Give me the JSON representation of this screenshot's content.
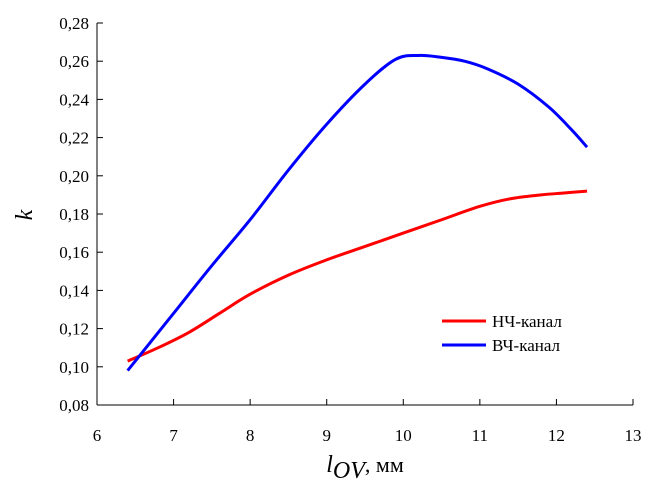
{
  "chart_data": {
    "type": "line",
    "title": "",
    "xlabel": "l_ov, мм",
    "xlabel_var": "l",
    "xlabel_sub": "OV",
    "xlabel_unit": ", мм",
    "ylabel": "k",
    "xlim": [
      6,
      13
    ],
    "ylim": [
      0.08,
      0.28
    ],
    "x_ticks": [
      6,
      7,
      8,
      9,
      10,
      11,
      12,
      13
    ],
    "x_tick_labels": [
      "6",
      "7",
      "8",
      "9",
      "10",
      "11",
      "12",
      "13"
    ],
    "y_ticks": [
      0.08,
      0.1,
      0.12,
      0.14,
      0.16,
      0.18,
      0.2,
      0.22,
      0.24,
      0.26,
      0.28
    ],
    "y_tick_labels": [
      "0,08",
      "0,10",
      "0,12",
      "0,14",
      "0,16",
      "0,18",
      "0,20",
      "0,22",
      "0,24",
      "0,26",
      "0,28"
    ],
    "grid": false,
    "legend_position": "bottom-right",
    "series": [
      {
        "name": "НЧ-канал",
        "color": "#ff0000",
        "x": [
          6.4,
          6.8,
          7.2,
          7.6,
          8.0,
          8.5,
          9.0,
          9.5,
          10.0,
          10.5,
          11.0,
          11.4,
          11.8,
          12.1,
          12.4
        ],
        "y": [
          0.103,
          0.11,
          0.118,
          0.128,
          0.138,
          0.148,
          0.156,
          0.163,
          0.17,
          0.177,
          0.184,
          0.188,
          0.19,
          0.191,
          0.192
        ]
      },
      {
        "name": "ВЧ-канал",
        "color": "#0000ff",
        "x": [
          6.4,
          6.6,
          7.0,
          7.5,
          8.0,
          8.5,
          9.0,
          9.5,
          9.9,
          10.2,
          10.5,
          10.8,
          11.1,
          11.5,
          11.9,
          12.2,
          12.4
        ],
        "y": [
          0.098,
          0.108,
          0.128,
          0.153,
          0.177,
          0.203,
          0.227,
          0.248,
          0.261,
          0.263,
          0.262,
          0.26,
          0.256,
          0.248,
          0.236,
          0.224,
          0.215
        ]
      }
    ]
  }
}
